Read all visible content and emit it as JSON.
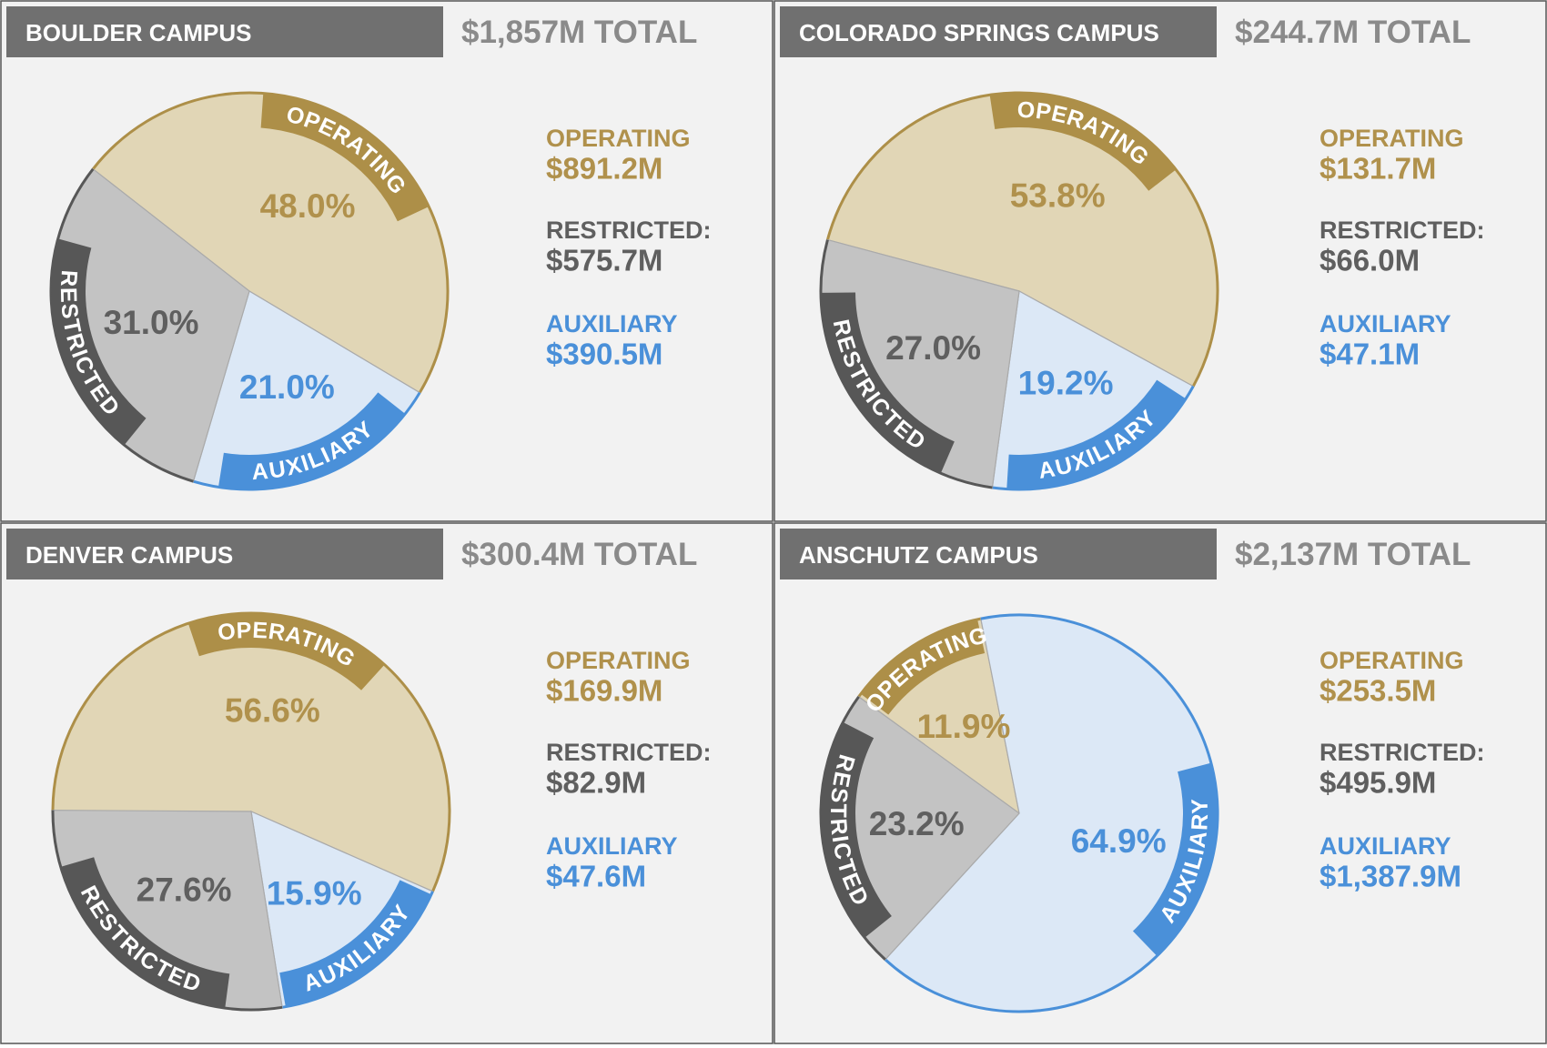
{
  "chart_data": [
    {
      "type": "pie",
      "title": "BOULDER CAMPUS",
      "subtitle": "$1,857M TOTAL",
      "categories": [
        "OPERATING",
        "RESTRICTED",
        "AUXILIARY"
      ],
      "values": [
        48.0,
        31.0,
        21.0
      ],
      "value_labels": [
        "48.0%",
        "31.0%",
        "21.0%"
      ],
      "legend_labels": [
        "OPERATING",
        "RESTRICTED:",
        "AUXILIARY"
      ],
      "amount_labels": [
        "$891.2M",
        "$575.7M",
        "$390.5M"
      ],
      "colors": [
        "#e1d6b6",
        "#c3c3c3",
        "#dce8f6"
      ],
      "ring_colors": [
        "#ad8f48",
        "#575757",
        "#4a90d9"
      ],
      "text_colors": [
        "#b0914c",
        "#5f5f5f",
        "#4a90d9"
      ]
    },
    {
      "type": "pie",
      "title": "COLORADO SPRINGS CAMPUS",
      "subtitle": "$244.7M TOTAL",
      "categories": [
        "OPERATING",
        "RESTRICTED",
        "AUXILIARY"
      ],
      "values": [
        53.8,
        27.0,
        19.2
      ],
      "value_labels": [
        "53.8%",
        "27.0%",
        "19.2%"
      ],
      "legend_labels": [
        "OPERATING",
        "RESTRICTED:",
        "AUXILIARY"
      ],
      "amount_labels": [
        "$131.7M",
        "$66.0M",
        "$47.1M"
      ],
      "colors": [
        "#e1d6b6",
        "#c3c3c3",
        "#dce8f6"
      ],
      "ring_colors": [
        "#ad8f48",
        "#575757",
        "#4a90d9"
      ],
      "text_colors": [
        "#b0914c",
        "#5f5f5f",
        "#4a90d9"
      ]
    },
    {
      "type": "pie",
      "title": "DENVER CAMPUS",
      "subtitle": "$300.4M TOTAL",
      "categories": [
        "OPERATING",
        "RESTRICTED",
        "AUXILIARY"
      ],
      "values": [
        56.6,
        27.6,
        15.9
      ],
      "value_labels": [
        "56.6%",
        "27.6%",
        "15.9%"
      ],
      "legend_labels": [
        "OPERATING",
        "RESTRICTED:",
        "AUXILIARY"
      ],
      "amount_labels": [
        "$169.9M",
        "$82.9M",
        "$47.6M"
      ],
      "colors": [
        "#e1d6b6",
        "#c3c3c3",
        "#dce8f6"
      ],
      "ring_colors": [
        "#ad8f48",
        "#575757",
        "#4a90d9"
      ],
      "text_colors": [
        "#b0914c",
        "#5f5f5f",
        "#4a90d9"
      ]
    },
    {
      "type": "pie",
      "title": "ANSCHUTZ CAMPUS",
      "subtitle": "$2,137M TOTAL",
      "categories": [
        "OPERATING",
        "RESTRICTED",
        "AUXILIARY"
      ],
      "values": [
        11.9,
        23.2,
        64.9
      ],
      "value_labels": [
        "11.9%",
        "23.2%",
        "64.9%"
      ],
      "legend_labels": [
        "OPERATING",
        "RESTRICTED:",
        "AUXILIARY"
      ],
      "amount_labels": [
        "$253.5M",
        "$495.9M",
        "$1,387.9M"
      ],
      "colors": [
        "#e1d6b6",
        "#c3c3c3",
        "#dce8f6"
      ],
      "ring_colors": [
        "#ad8f48",
        "#575757",
        "#4a90d9"
      ],
      "text_colors": [
        "#b0914c",
        "#5f5f5f",
        "#4a90d9"
      ]
    }
  ]
}
